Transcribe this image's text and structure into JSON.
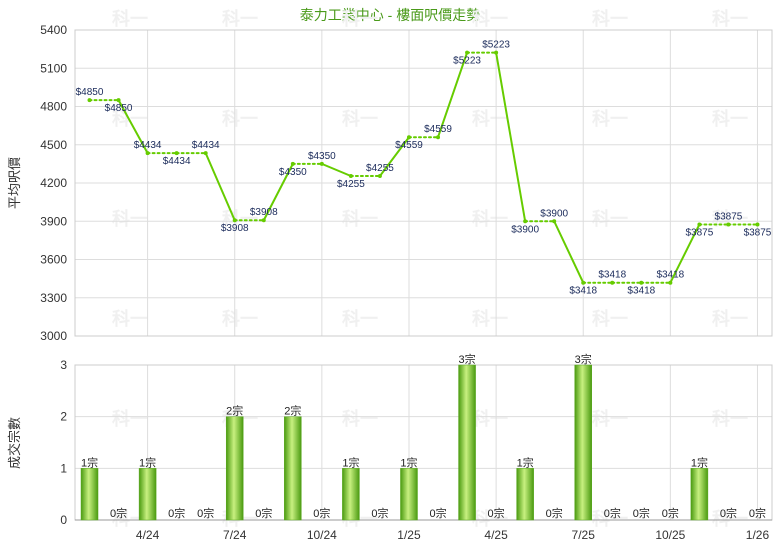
{
  "chart_data": [
    {
      "type": "line",
      "title": "泰力工業中心 - 樓面呎價走勢",
      "ylabel": "平均呎價",
      "ylim": [
        3000,
        5400
      ],
      "yticks": [
        3000,
        3300,
        3600,
        3900,
        4200,
        4500,
        4800,
        5100,
        5400
      ],
      "grid": true,
      "series": [
        {
          "values": [
            4850,
            4850,
            4434,
            4434,
            4434,
            3908,
            3908,
            4350,
            4350,
            4255,
            4255,
            4559,
            4559,
            5223,
            5223,
            3900,
            3900,
            3418,
            3418,
            3418,
            3418,
            3875,
            3875,
            3875
          ]
        }
      ],
      "labels": [
        "$4850",
        "$4850",
        "$4434",
        "$4434",
        "$4434",
        "$3908",
        "$3908",
        "$4350",
        "$4350",
        "$4255",
        "$4255",
        "$4559",
        "$4559",
        "$5223",
        "$5223",
        "$3900",
        "$3900",
        "$3418",
        "$3418",
        "$3418",
        "$3418",
        "$3875",
        "$3875",
        "$3875"
      ]
    },
    {
      "type": "bar",
      "ylabel": "成交宗數",
      "ylim": [
        0,
        3
      ],
      "yticks": [
        0,
        1,
        2,
        3
      ],
      "grid": true,
      "values": [
        1,
        0,
        1,
        0,
        0,
        2,
        0,
        2,
        0,
        1,
        0,
        1,
        0,
        3,
        0,
        1,
        0,
        3,
        0,
        0,
        0,
        1,
        0,
        0
      ],
      "value_suffix": "宗",
      "x_tick_labels": [
        {
          "index": 2,
          "label": "4/24"
        },
        {
          "index": 5,
          "label": "7/24"
        },
        {
          "index": 8,
          "label": "10/24"
        },
        {
          "index": 11,
          "label": "1/25"
        },
        {
          "index": 14,
          "label": "4/25"
        },
        {
          "index": 17,
          "label": "7/25"
        },
        {
          "index": 20,
          "label": "10/25"
        },
        {
          "index": 23,
          "label": "1/26"
        }
      ]
    }
  ],
  "colors": {
    "line": "#66cc00",
    "bar_dark": "#4a9a10",
    "bar_light": "#c8f080",
    "grid": "#dddddd",
    "title": "#4a9a1a"
  },
  "watermark": "科一"
}
